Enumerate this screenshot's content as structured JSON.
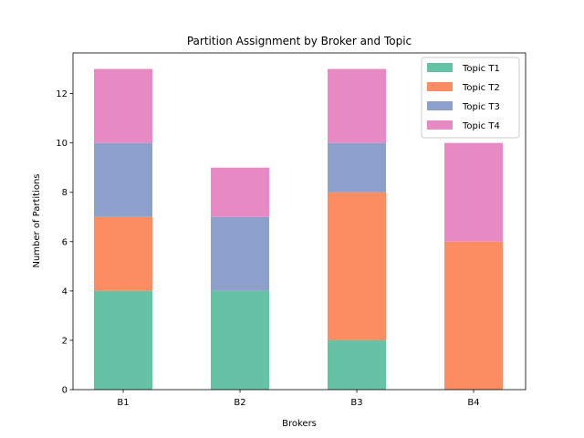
{
  "chart_data": {
    "type": "bar",
    "stacked": true,
    "title": "Partition Assignment by Broker and Topic",
    "xlabel": "Brokers",
    "ylabel": "Number of Partitions",
    "categories": [
      "B1",
      "B2",
      "B3",
      "B4"
    ],
    "ylim": [
      0,
      13.65
    ],
    "yticks": [
      0,
      2,
      4,
      6,
      8,
      10,
      12
    ],
    "series": [
      {
        "name": "Topic T1",
        "color": "#66c2a5",
        "values": [
          4,
          4,
          2,
          0
        ]
      },
      {
        "name": "Topic T2",
        "color": "#fc8d62",
        "values": [
          3,
          0,
          6,
          6
        ]
      },
      {
        "name": "Topic T3",
        "color": "#8da0cb",
        "values": [
          3,
          3,
          2,
          0
        ]
      },
      {
        "name": "Topic T4",
        "color": "#e78ac3",
        "values": [
          3,
          2,
          3,
          4
        ]
      }
    ],
    "legend": "top-right",
    "grid": false
  }
}
